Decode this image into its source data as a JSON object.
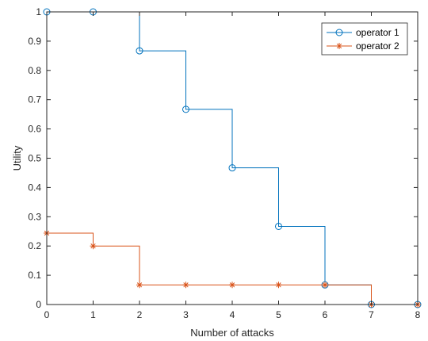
{
  "chart_data": {
    "type": "line",
    "title": "",
    "xlabel": "Number of attacks",
    "ylabel": "Utility",
    "xlim": [
      0,
      8
    ],
    "ylim": [
      0,
      1
    ],
    "x_ticks": [
      "0",
      "1",
      "2",
      "3",
      "4",
      "5",
      "6",
      "7",
      "8"
    ],
    "y_ticks": [
      "0",
      "0.1",
      "0.2",
      "0.3",
      "0.4",
      "0.5",
      "0.6",
      "0.7",
      "0.8",
      "0.9",
      "1"
    ],
    "grid": false,
    "legend_position": "top-right",
    "step_style": "post",
    "series": [
      {
        "name": "operator 1",
        "color": "#0072BD",
        "marker": "circle",
        "x": [
          0,
          1,
          2,
          3,
          4,
          5,
          6,
          7,
          8
        ],
        "y": [
          1,
          1,
          0.867,
          0.667,
          0.467,
          0.267,
          0.067,
          0,
          0
        ]
      },
      {
        "name": "operator 2",
        "color": "#D95319",
        "marker": "asterisk",
        "x": [
          0,
          1,
          2,
          3,
          4,
          5,
          6,
          7,
          8
        ],
        "y": [
          0.244,
          0.2,
          0.067,
          0.067,
          0.067,
          0.067,
          0.067,
          0,
          0
        ]
      }
    ]
  }
}
